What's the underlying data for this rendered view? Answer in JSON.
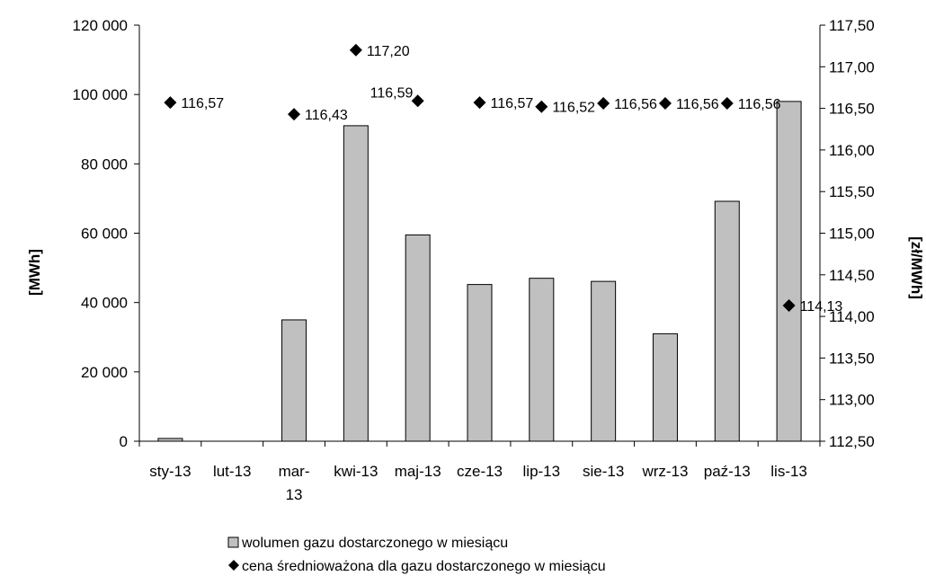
{
  "chart_data": {
    "type": "bar",
    "categories": [
      [
        "sty-13"
      ],
      [
        "lut-13"
      ],
      [
        "mar-",
        "13"
      ],
      [
        "kwi-13"
      ],
      [
        "maj-13"
      ],
      [
        "cze-13"
      ],
      [
        "lip-13"
      ],
      [
        "sie-13"
      ],
      [
        "wrz-13"
      ],
      [
        "paź-13"
      ],
      [
        "lis-13"
      ]
    ],
    "left_axis": {
      "label": "[MWh]",
      "ylim": [
        0,
        120000
      ],
      "ticks": [
        0,
        20000,
        40000,
        60000,
        80000,
        100000,
        120000
      ],
      "tick_labels": [
        "0",
        "20 000",
        "40 000",
        "60 000",
        "80 000",
        "100 000",
        "120 000"
      ]
    },
    "right_axis": {
      "label": "[zł/MWh]",
      "ylim": [
        112.5,
        117.5
      ],
      "ticks": [
        112.5,
        113.0,
        113.5,
        114.0,
        114.5,
        115.0,
        115.5,
        116.0,
        116.5,
        117.0,
        117.5
      ],
      "tick_labels": [
        "112,50",
        "113,00",
        "113,50",
        "114,00",
        "114,50",
        "115,00",
        "115,50",
        "116,00",
        "116,50",
        "117,00",
        "117,50"
      ]
    },
    "series": [
      {
        "name": "wolumen gazu dostarczonego w miesiącu",
        "type": "bar",
        "axis": "left",
        "color": "#c0c0c0",
        "values": [
          800,
          0,
          35000,
          91000,
          59500,
          45200,
          47000,
          46100,
          31000,
          69200,
          98000
        ]
      },
      {
        "name": "cena średnioważona dla gazu dostarczonego w miesiącu",
        "type": "scatter",
        "axis": "right",
        "marker": "diamond",
        "color": "#000000",
        "values": [
          116.57,
          null,
          116.43,
          117.2,
          116.59,
          116.57,
          116.52,
          116.56,
          116.56,
          116.56,
          114.13
        ],
        "labels": [
          "116,57",
          "",
          "116,43",
          "117,20",
          "116,59",
          "116,57",
          "116,52",
          "116,56",
          "116,56",
          "116,56",
          "114,13"
        ]
      }
    ],
    "legend": "bottom",
    "grid": false
  }
}
